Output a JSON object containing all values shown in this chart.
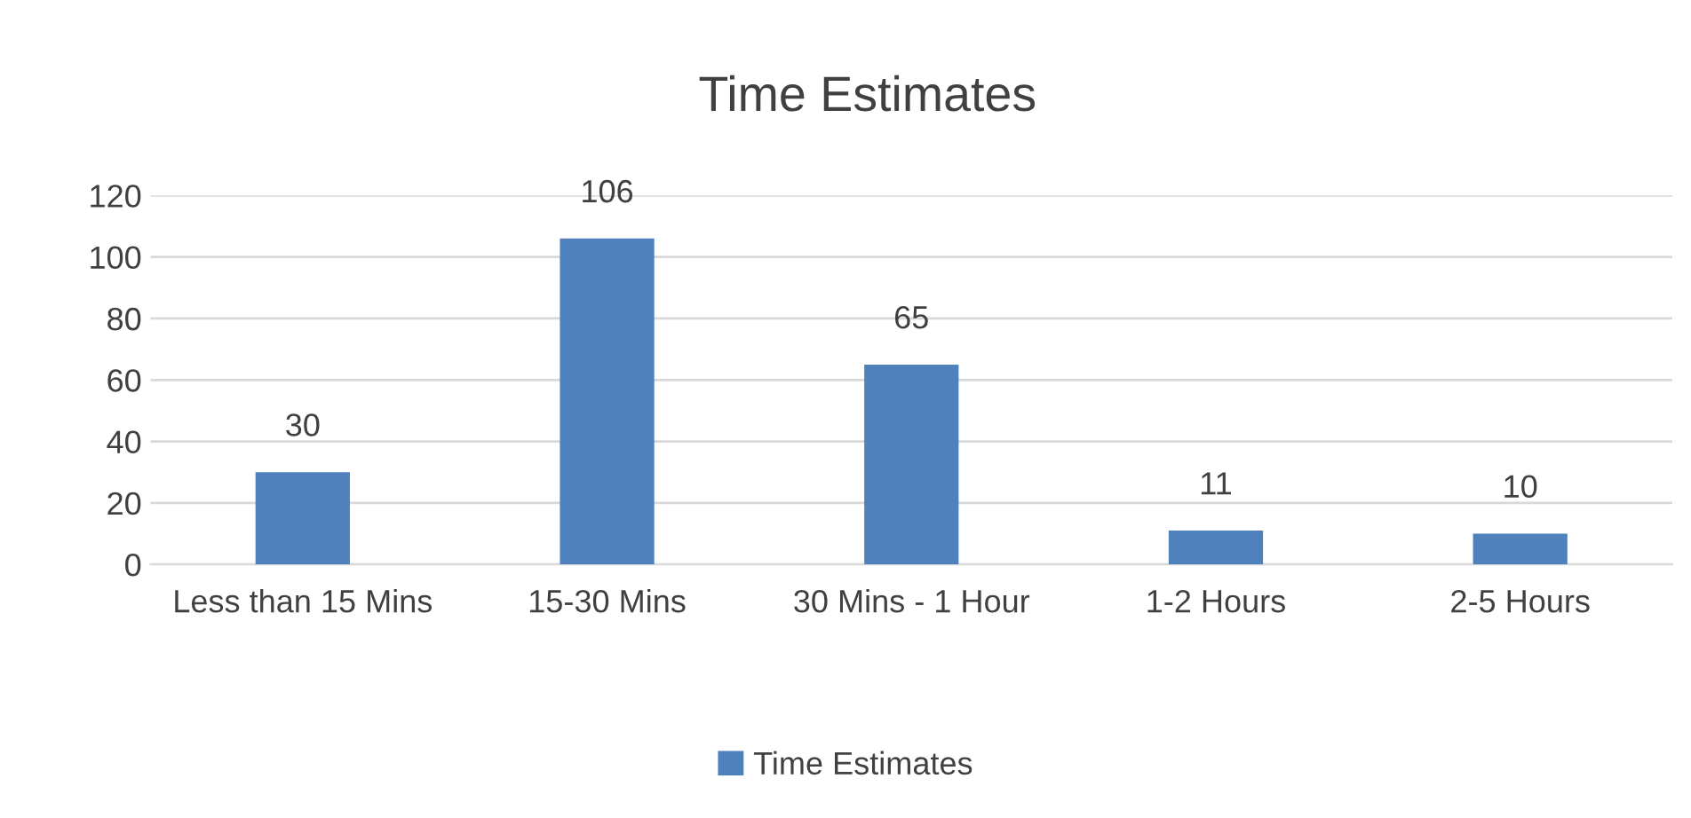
{
  "chart_data": {
    "type": "bar",
    "title": "Time Estimates",
    "categories": [
      "Less than 15 Mins",
      "15-30 Mins",
      "30 Mins - 1 Hour",
      "1-2 Hours",
      "2-5 Hours"
    ],
    "series": [
      {
        "name": "Time Estimates",
        "color": "#4f81bd",
        "values": [
          30,
          106,
          65,
          11,
          10
        ]
      }
    ],
    "ylim": [
      0,
      120
    ],
    "yticks": [
      0,
      20,
      40,
      60,
      80,
      100,
      120
    ],
    "grid": "y",
    "legend": "bottom",
    "data_labels": true
  }
}
